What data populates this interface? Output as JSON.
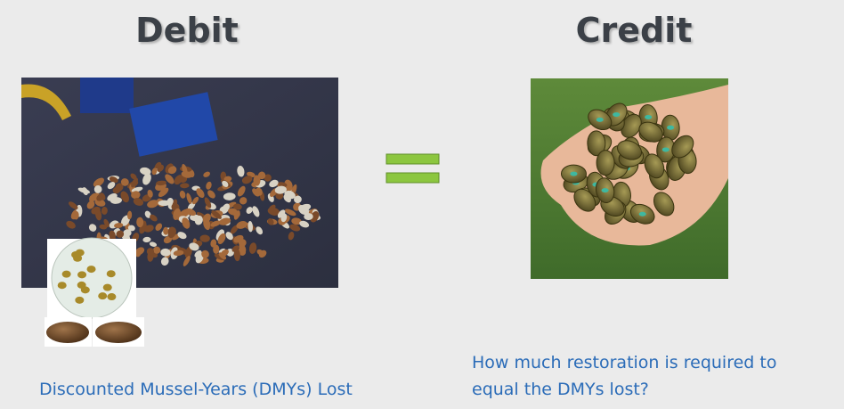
{
  "debit": {
    "heading": "Debit",
    "caption": "Discounted Mussel-Years (DMYs) Lost"
  },
  "credit": {
    "heading": "Credit",
    "caption_lines": [
      "How much restoration is required to",
      "equal the DMYs lost?"
    ]
  }
}
